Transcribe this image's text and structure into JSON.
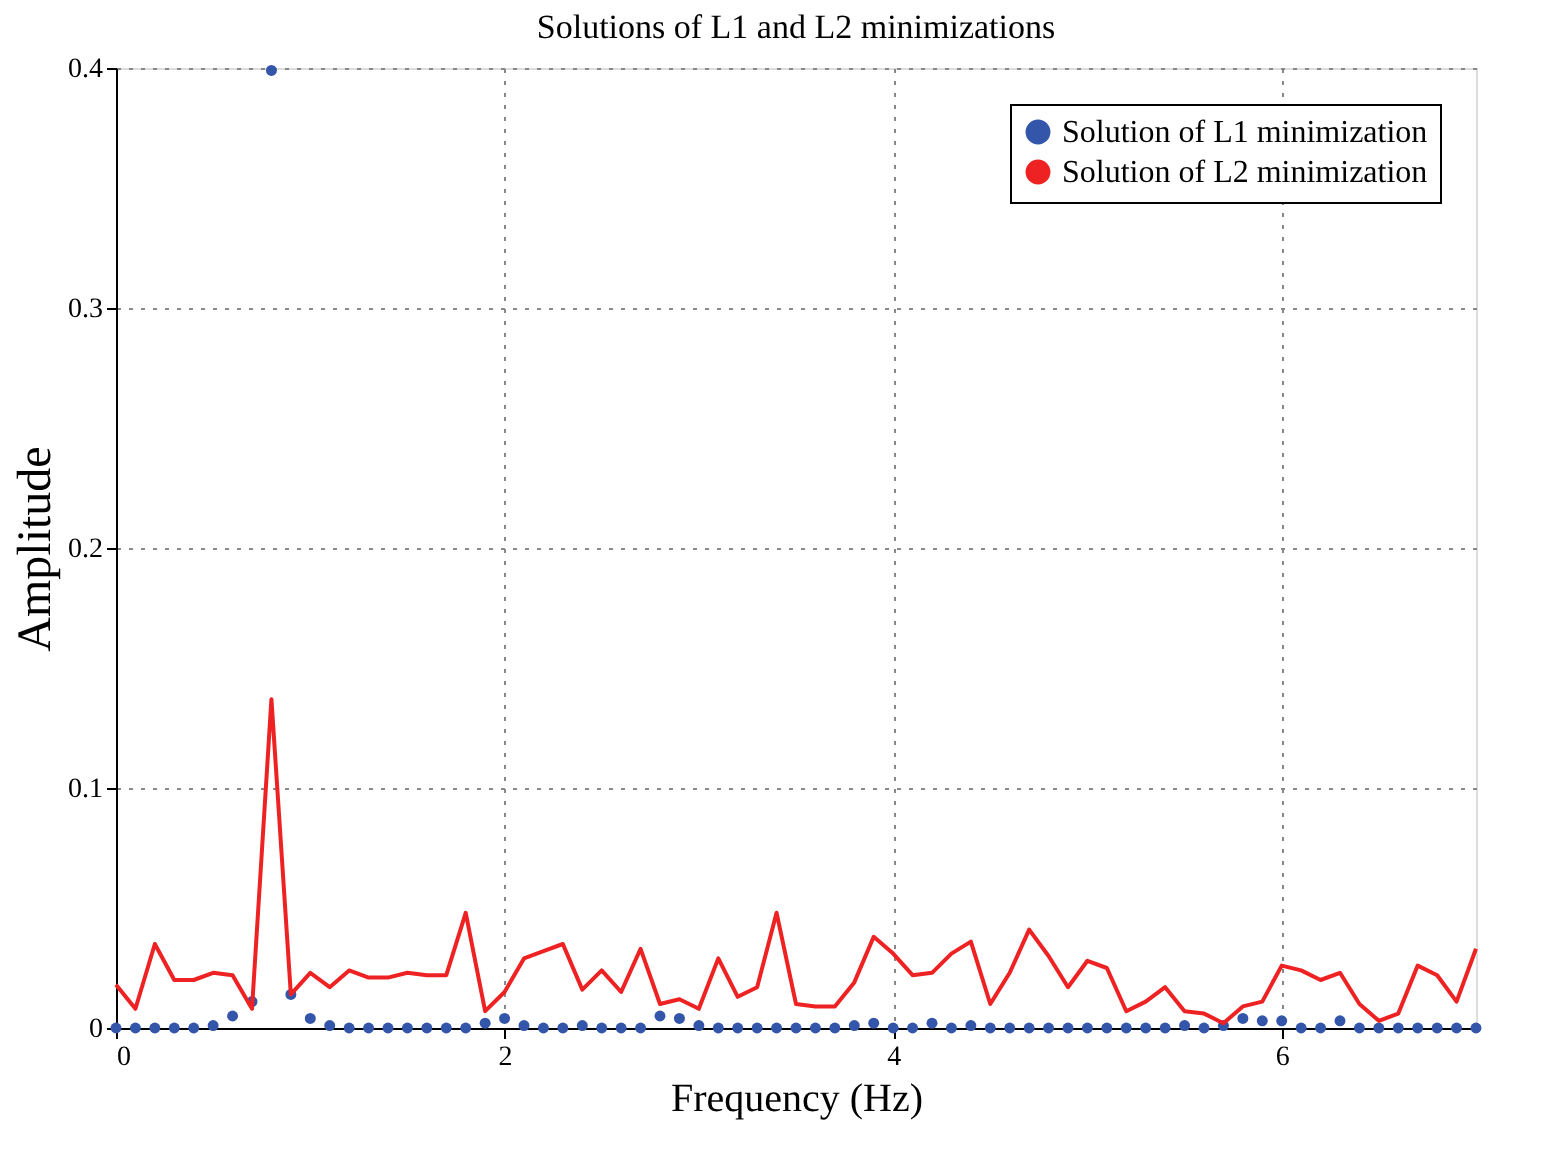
{
  "chart_data": {
    "type": "line",
    "title": "Solutions of L1 and L2 minimizations",
    "xlabel": "Frequency (Hz)",
    "ylabel": "Amplitude",
    "x": [
      0,
      0.1,
      0.2,
      0.3,
      0.4,
      0.5,
      0.6,
      0.7,
      0.8,
      0.9,
      1.0,
      1.1,
      1.2,
      1.3,
      1.4,
      1.5,
      1.6,
      1.7,
      1.8,
      1.9,
      2.0,
      2.1,
      2.2,
      2.3,
      2.4,
      2.5,
      2.6,
      2.7,
      2.8,
      2.9,
      3.0,
      3.1,
      3.2,
      3.3,
      3.4,
      3.5,
      3.6,
      3.7,
      3.8,
      3.9,
      4.0,
      4.1,
      4.2,
      4.3,
      4.4,
      4.5,
      4.6,
      4.7,
      4.8,
      4.9,
      5.0,
      5.1,
      5.2,
      5.3,
      5.4,
      5.5,
      5.6,
      5.7,
      5.8,
      5.9,
      6.0,
      6.1,
      6.2,
      6.3,
      6.4,
      6.5,
      6.6,
      6.7,
      6.8,
      6.9,
      7.0
    ],
    "series": [
      {
        "name": "Solution of L1 minimization",
        "type": "scatter",
        "marker": "circle",
        "color": "#3355aa",
        "values": [
          0,
          0,
          0,
          0,
          0,
          0.001,
          0.005,
          0.011,
          0.399,
          0.014,
          0.004,
          0.001,
          0,
          0,
          0,
          0,
          0,
          0,
          0,
          0.002,
          0.004,
          0.001,
          0,
          0,
          0.001,
          0,
          0,
          0,
          0.005,
          0.004,
          0.001,
          0,
          0,
          0,
          0,
          0,
          0,
          0,
          0.001,
          0.002,
          0,
          0,
          0.002,
          0,
          0.001,
          0,
          0,
          0,
          0,
          0,
          0,
          0,
          0,
          0,
          0,
          0.001,
          0,
          0.001,
          0.004,
          0.003,
          0.003,
          0,
          0,
          0.003,
          0,
          0,
          0,
          0,
          0,
          0,
          0
        ]
      },
      {
        "name": "Solution of L2 minimization",
        "marker": "none",
        "line_style": "solid",
        "color": "#ee2222",
        "values": [
          0.018,
          0.008,
          0.035,
          0.02,
          0.02,
          0.023,
          0.022,
          0.008,
          0.137,
          0.014,
          0.023,
          0.017,
          0.024,
          0.021,
          0.021,
          0.023,
          0.022,
          0.022,
          0.048,
          0.007,
          0.015,
          0.029,
          0.032,
          0.035,
          0.016,
          0.024,
          0.015,
          0.033,
          0.01,
          0.012,
          0.008,
          0.029,
          0.013,
          0.017,
          0.048,
          0.01,
          0.009,
          0.009,
          0.019,
          0.038,
          0.031,
          0.022,
          0.023,
          0.031,
          0.036,
          0.01,
          0.023,
          0.041,
          0.03,
          0.017,
          0.028,
          0.025,
          0.007,
          0.011,
          0.017,
          0.007,
          0.006,
          0.002,
          0.009,
          0.011,
          0.026,
          0.024,
          0.02,
          0.023,
          0.01,
          0.003,
          0.006,
          0.026,
          0.022,
          0.011,
          0.033
        ]
      }
    ],
    "xlim": [
      0,
      7
    ],
    "xticks": [
      0,
      2,
      4,
      6
    ],
    "ylim": [
      0,
      0.4
    ],
    "yticks": [
      0,
      0.1,
      0.2,
      0.3,
      0.4
    ],
    "grid": true,
    "legend": "top right"
  }
}
